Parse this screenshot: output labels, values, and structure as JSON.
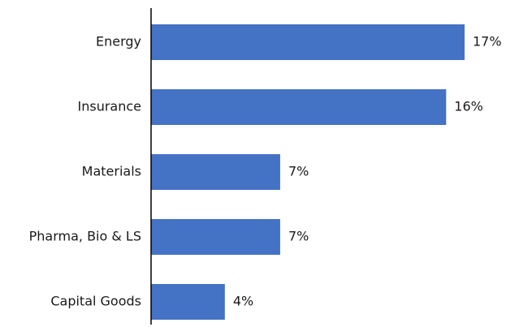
{
  "chart_data": {
    "type": "bar",
    "orientation": "horizontal",
    "categories": [
      "Energy",
      "Insurance",
      "Materials",
      "Pharma, Bio & LS",
      "Capital Goods"
    ],
    "values": [
      17,
      16,
      7,
      7,
      4
    ],
    "value_labels": [
      "17%",
      "16%",
      "7%",
      "7%",
      "4%"
    ],
    "unit": "%",
    "title": "",
    "xlabel": "",
    "ylabel": "",
    "xlim": [
      0,
      17.5
    ],
    "grid": false,
    "bar_color": "#4472C4"
  }
}
